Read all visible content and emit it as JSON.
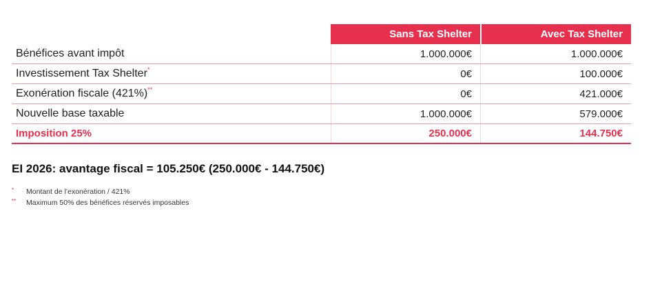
{
  "table": {
    "headers": [
      "",
      "Sans Tax Shelter",
      "Avec Tax Shelter"
    ],
    "rows": [
      {
        "label": "Bénéfices avant impôt",
        "marker": "",
        "sans": "1.000.000€",
        "avec": "1.000.000€"
      },
      {
        "label": "Investissement Tax Shelter",
        "marker": "*",
        "sans": "0€",
        "avec": "100.000€"
      },
      {
        "label": "Exonération fiscale (421%)",
        "marker": "**",
        "sans": "0€",
        "avec": "421.000€"
      },
      {
        "label": "Nouvelle base taxable",
        "marker": "",
        "sans": "1.000.000€",
        "avec": "579.000€"
      }
    ],
    "total": {
      "label": "Imposition 25%",
      "sans": "250.000€",
      "avec": "144.750€"
    }
  },
  "summary": "EI 2026: avantage fiscal = 105.250€ (250.000€ - 144.750€)",
  "notes": [
    {
      "marker": "*",
      "text": "Montant de l’exonération / 421%"
    },
    {
      "marker": "**",
      "text": "Maximum 50% des bénéfices réservés imposables"
    }
  ],
  "colors": {
    "accent": "#e6304e",
    "divider": "#e8a0aa"
  }
}
